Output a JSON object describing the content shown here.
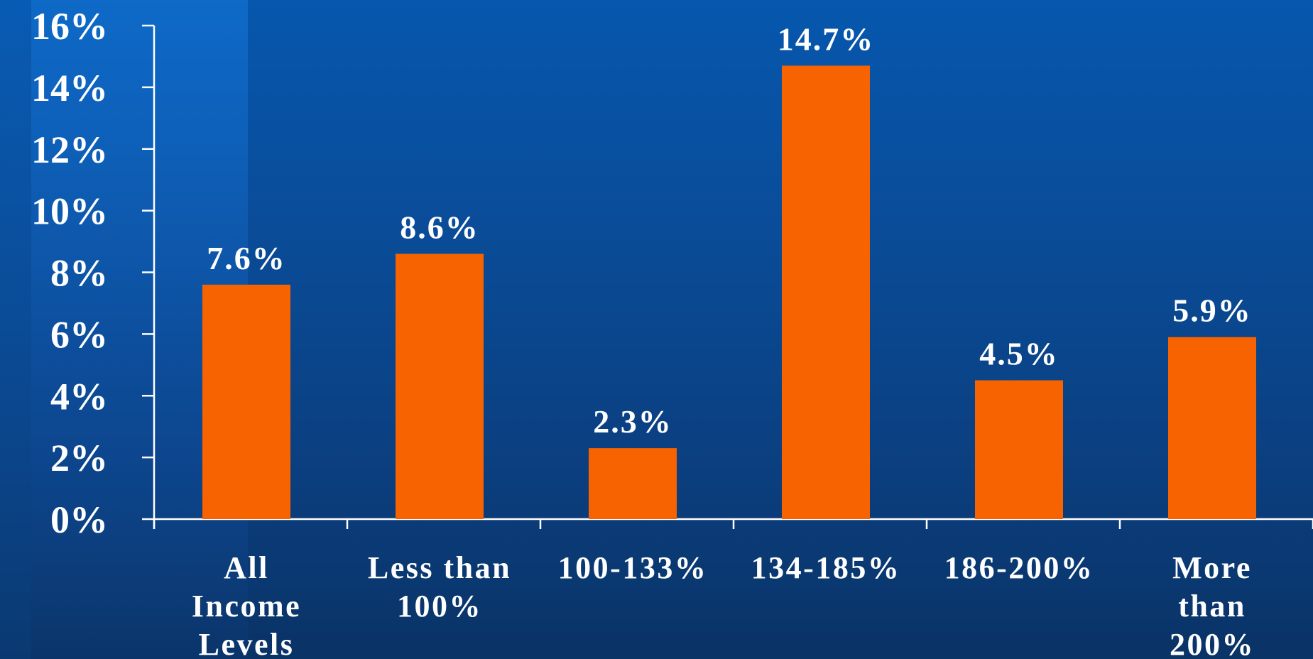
{
  "chart_data": {
    "type": "bar",
    "title": "",
    "xlabel": "",
    "ylabel": "",
    "categories": [
      [
        "All",
        "Income",
        "Levels"
      ],
      [
        "Less than",
        "100%"
      ],
      [
        "100-133%"
      ],
      [
        "134-185%"
      ],
      [
        "186-200%"
      ],
      [
        "More",
        "than",
        "200%"
      ]
    ],
    "values": [
      7.6,
      8.6,
      2.3,
      14.7,
      4.5,
      5.9
    ],
    "data_labels": [
      "7.6%",
      "8.6%",
      "2.3%",
      "14.7%",
      "4.5%",
      "5.9%"
    ],
    "yticks": [
      0,
      2,
      4,
      6,
      8,
      10,
      12,
      14,
      16
    ],
    "ytick_labels": [
      "0%",
      "2%",
      "4%",
      "6%",
      "8%",
      "10%",
      "12%",
      "14%",
      "16%"
    ],
    "ylim": [
      0,
      16
    ],
    "grid": false,
    "legend": "none",
    "colors": {
      "bar": "#f76300",
      "text": "#ffffff",
      "axis": "#ffffff"
    }
  }
}
